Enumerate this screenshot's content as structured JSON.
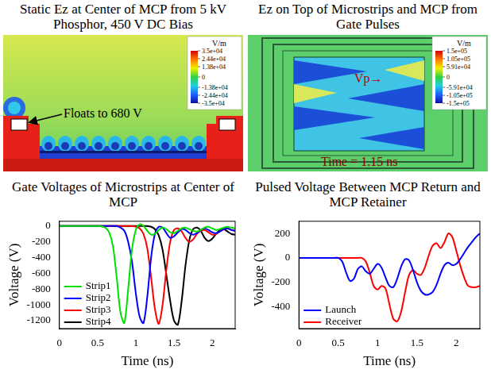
{
  "field_maps": [
    {
      "title": "Static Ez at Center of MCP from 5 kV Phosphor, 450 V DC Bias",
      "colorbar": {
        "title": "V/m",
        "range": [
          -35000,
          35000
        ],
        "ticks": [
          {
            "value": 35000,
            "label": "3.5e+04"
          },
          {
            "value": 24400,
            "label": "2.44e+04"
          },
          {
            "value": 13800,
            "label": "1.38e+04"
          },
          0,
          {
            "value": -13800,
            "label": "-1.38e+04"
          },
          {
            "value": -24400,
            "label": "-2.44e+04"
          },
          {
            "value": -35000,
            "label": "-3.5e+04"
          }
        ]
      },
      "annotations": [
        "Floats to 680 V"
      ]
    },
    {
      "title": "Ez on Top of Microstrips and MCP from Gate Pulses",
      "colorbar": {
        "title": "V/m",
        "range": [
          -150000,
          150000
        ],
        "ticks": [
          {
            "value": 150000,
            "label": "1.5e+05"
          },
          {
            "value": 105000,
            "label": "1.05e+05"
          },
          {
            "value": 59100,
            "label": "5.91e+04"
          },
          0,
          {
            "value": -59100,
            "label": "-5.91e+04"
          },
          {
            "value": -105000,
            "label": "-1.05e+05"
          },
          {
            "value": -150000,
            "label": "-1.5e+05"
          }
        ]
      },
      "annotations": [
        "Vp→",
        "Time = 1.15 ns"
      ]
    }
  ],
  "chart_data": [
    {
      "type": "line",
      "title": "Gate Voltages of Microstrips at Center of MCP",
      "x_label": "Time (ns)",
      "y_label": "Voltage (V)",
      "x": [
        0,
        0.05,
        0.1,
        0.15,
        0.2,
        0.25,
        0.3,
        0.35,
        0.4,
        0.45,
        0.5,
        0.55,
        0.6,
        0.65,
        0.7,
        0.75,
        0.8,
        0.85,
        0.9,
        0.95,
        1,
        1.05,
        1.1,
        1.15,
        1.2,
        1.25,
        1.3,
        1.35,
        1.4,
        1.45,
        1.5,
        1.55,
        1.6,
        1.65,
        1.7,
        1.75,
        1.8,
        1.85,
        1.9,
        1.95,
        2,
        2.05,
        2.1,
        2.15,
        2.2,
        2.25,
        2.3
      ],
      "xlim": [
        0,
        2.3
      ],
      "xticks": [
        0,
        0.5,
        1,
        1.5,
        2
      ],
      "ylim": [
        -1300,
        60
      ],
      "yticks": [
        -1200,
        -1000,
        -800,
        -600,
        -400,
        -200,
        0
      ],
      "grid": false,
      "legend": "bottom left",
      "series": [
        {
          "name": "Strip1",
          "color": "#00e000",
          "values": [
            0,
            0,
            0,
            0,
            0,
            0,
            0,
            0,
            0,
            0,
            0,
            -5,
            -20,
            -80,
            -250,
            -650,
            -1100,
            -1230,
            -800,
            -300,
            -50,
            20,
            0,
            -60,
            -110,
            -100,
            -50,
            -20,
            -40,
            -80,
            -90,
            -60,
            -30,
            -20,
            -40,
            -60,
            -70,
            -50,
            -20,
            -10,
            -30,
            -50,
            -40,
            -20,
            -10,
            -20,
            -30
          ]
        },
        {
          "name": "Strip2",
          "color": "#0000ff",
          "values": [
            0,
            0,
            0,
            0,
            0,
            0,
            0,
            0,
            0,
            0,
            0,
            0,
            0,
            0,
            0,
            0,
            -20,
            -60,
            -200,
            -450,
            -850,
            -1150,
            -1230,
            -900,
            -400,
            -100,
            -10,
            -20,
            -90,
            -150,
            -130,
            -80,
            -40,
            -50,
            -90,
            -110,
            -90,
            -50,
            -30,
            -50,
            -80,
            -90,
            -70,
            -40,
            -30,
            -50,
            -60
          ]
        },
        {
          "name": "Strip3",
          "color": "#ff0000",
          "values": [
            0,
            0,
            0,
            0,
            0,
            0,
            0,
            0,
            0,
            0,
            0,
            0,
            0,
            0,
            0,
            0,
            0,
            0,
            0,
            0,
            -10,
            -30,
            -100,
            -280,
            -650,
            -1050,
            -1240,
            -1000,
            -550,
            -200,
            -50,
            -30,
            -70,
            -150,
            -200,
            -170,
            -100,
            -60,
            -50,
            -80,
            -110,
            -100,
            -70,
            -40,
            -30,
            -50,
            -60
          ]
        },
        {
          "name": "Strip4",
          "color": "#000000",
          "values": [
            0,
            0,
            0,
            0,
            0,
            0,
            0,
            0,
            0,
            0,
            0,
            0,
            0,
            0,
            0,
            0,
            0,
            0,
            0,
            0,
            0,
            0,
            0,
            0,
            -10,
            -40,
            -120,
            -300,
            -620,
            -950,
            -1200,
            -1250,
            -950,
            -500,
            -180,
            -40,
            -20,
            -60,
            -150,
            -190,
            -160,
            -100,
            -50,
            -40,
            -70,
            -100,
            -110
          ]
        }
      ]
    },
    {
      "type": "line",
      "title": "Pulsed Voltage Between MCP Return and MCP Retainer",
      "x_label": "Time (ns)",
      "y_label": "Voltage (V)",
      "x": [
        0,
        0.05,
        0.1,
        0.15,
        0.2,
        0.25,
        0.3,
        0.35,
        0.4,
        0.45,
        0.5,
        0.55,
        0.6,
        0.65,
        0.7,
        0.75,
        0.8,
        0.85,
        0.9,
        0.95,
        1,
        1.05,
        1.1,
        1.15,
        1.2,
        1.25,
        1.3,
        1.35,
        1.4,
        1.45,
        1.5,
        1.55,
        1.6,
        1.65,
        1.7,
        1.75,
        1.8,
        1.85,
        1.9,
        1.95,
        2,
        2.05,
        2.1,
        2.15,
        2.2,
        2.25,
        2.3
      ],
      "xlim": [
        0,
        2.3
      ],
      "xticks": [
        0,
        0.5,
        1,
        1.5,
        2
      ],
      "ylim": [
        -580,
        300
      ],
      "yticks": [
        -400,
        -200,
        0,
        200
      ],
      "grid": false,
      "legend": "bottom left",
      "series": [
        {
          "name": "Launch",
          "color": "#0000ff",
          "values": [
            0,
            0,
            0,
            0,
            0,
            0,
            0,
            0,
            0,
            0,
            0,
            -30,
            -120,
            -190,
            -170,
            -90,
            -70,
            -110,
            -130,
            -90,
            -50,
            -80,
            -160,
            -230,
            -240,
            -170,
            -70,
            -10,
            -20,
            -100,
            -200,
            -270,
            -300,
            -300,
            -280,
            -220,
            -130,
            -60,
            -40,
            -60,
            -50,
            -10,
            40,
            90,
            130,
            170,
            200
          ]
        },
        {
          "name": "Receiver",
          "color": "#ff0000",
          "values": [
            0,
            0,
            0,
            0,
            0,
            0,
            0,
            0,
            0,
            0,
            0,
            0,
            0,
            0,
            0,
            0,
            0,
            -30,
            -120,
            -230,
            -260,
            -230,
            -250,
            -380,
            -500,
            -520,
            -440,
            -280,
            -140,
            -100,
            -130,
            -140,
            -80,
            20,
            100,
            120,
            80,
            130,
            200,
            170,
            60,
            -60,
            -160,
            -230,
            -240,
            -240,
            -230
          ]
        }
      ]
    }
  ]
}
